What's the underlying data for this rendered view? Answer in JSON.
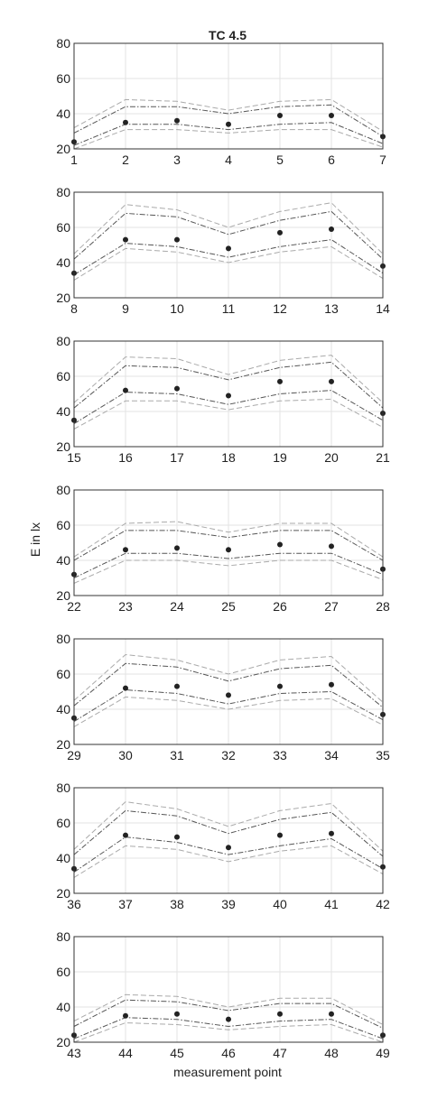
{
  "chart_data": {
    "type": "line",
    "title": "TC 4.5",
    "xlabel": "measurement point",
    "ylabel": "E in lx",
    "ylim": [
      20,
      80
    ],
    "yticks": [
      20,
      40,
      60,
      80
    ],
    "grid": true,
    "legend": "none",
    "colors": {
      "axes": "#333333",
      "grid": "#e3e3e3",
      "dash_dot": "#555555",
      "dashed": "#aaaaaa",
      "points": "#222222"
    },
    "panels": [
      {
        "x": [
          1,
          2,
          3,
          4,
          5,
          6,
          7
        ],
        "points": [
          24,
          35,
          36,
          34,
          39,
          39,
          27
        ],
        "upper_dashed": [
          32,
          48,
          47,
          42,
          47,
          48,
          30
        ],
        "upper_dashdot": [
          29,
          44,
          44,
          40,
          44,
          45,
          27
        ],
        "lower_dashdot": [
          22,
          34,
          34,
          31,
          34,
          35,
          23
        ],
        "lower_dashed": [
          20,
          31,
          31,
          29,
          31,
          31,
          21
        ]
      },
      {
        "x": [
          8,
          9,
          10,
          11,
          12,
          13,
          14
        ],
        "points": [
          34,
          53,
          53,
          48,
          57,
          59,
          38
        ],
        "upper_dashed": [
          45,
          73,
          70,
          60,
          69,
          74,
          45
        ],
        "upper_dashdot": [
          42,
          68,
          66,
          56,
          64,
          69,
          42
        ],
        "lower_dashdot": [
          33,
          51,
          49,
          43,
          49,
          53,
          34
        ],
        "lower_dashed": [
          30,
          48,
          46,
          40,
          46,
          49,
          31
        ]
      },
      {
        "x": [
          15,
          16,
          17,
          18,
          19,
          20,
          21
        ],
        "points": [
          35,
          52,
          53,
          49,
          57,
          57,
          39
        ],
        "upper_dashed": [
          45,
          71,
          70,
          61,
          69,
          72,
          45
        ],
        "upper_dashdot": [
          42,
          66,
          65,
          58,
          65,
          68,
          42
        ],
        "lower_dashdot": [
          33,
          51,
          50,
          44,
          50,
          52,
          35
        ],
        "lower_dashed": [
          30,
          46,
          46,
          41,
          46,
          47,
          31
        ]
      },
      {
        "x": [
          22,
          23,
          24,
          25,
          26,
          27,
          28
        ],
        "points": [
          32,
          46,
          47,
          46,
          49,
          48,
          35
        ],
        "upper_dashed": [
          42,
          61,
          62,
          56,
          61,
          61,
          42
        ],
        "upper_dashdot": [
          40,
          57,
          57,
          53,
          57,
          57,
          40
        ],
        "lower_dashdot": [
          30,
          44,
          44,
          41,
          44,
          44,
          32
        ],
        "lower_dashed": [
          27,
          40,
          40,
          37,
          40,
          40,
          29
        ]
      },
      {
        "x": [
          29,
          30,
          31,
          32,
          33,
          34,
          35
        ],
        "points": [
          35,
          52,
          53,
          48,
          53,
          54,
          37
        ],
        "upper_dashed": [
          45,
          71,
          68,
          60,
          68,
          70,
          44
        ],
        "upper_dashdot": [
          42,
          66,
          64,
          56,
          63,
          65,
          41
        ],
        "lower_dashdot": [
          33,
          51,
          49,
          43,
          49,
          50,
          34
        ],
        "lower_dashed": [
          30,
          47,
          45,
          40,
          45,
          46,
          31
        ]
      },
      {
        "x": [
          36,
          37,
          38,
          39,
          40,
          41,
          42
        ],
        "points": [
          34,
          53,
          52,
          46,
          53,
          54,
          35
        ],
        "upper_dashed": [
          45,
          72,
          68,
          58,
          67,
          71,
          44
        ],
        "upper_dashdot": [
          42,
          67,
          64,
          54,
          62,
          66,
          41
        ],
        "lower_dashdot": [
          32,
          52,
          49,
          42,
          47,
          51,
          34
        ],
        "lower_dashed": [
          29,
          47,
          45,
          38,
          44,
          47,
          31
        ]
      },
      {
        "x": [
          43,
          44,
          45,
          46,
          47,
          48,
          49
        ],
        "points": [
          24,
          35,
          36,
          33,
          36,
          36,
          24
        ],
        "upper_dashed": [
          32,
          47,
          46,
          40,
          45,
          45,
          30
        ],
        "upper_dashdot": [
          29,
          44,
          43,
          38,
          42,
          42,
          28
        ],
        "lower_dashdot": [
          22,
          34,
          33,
          29,
          32,
          33,
          22
        ],
        "lower_dashed": [
          20,
          31,
          30,
          27,
          29,
          30,
          20
        ]
      }
    ]
  }
}
